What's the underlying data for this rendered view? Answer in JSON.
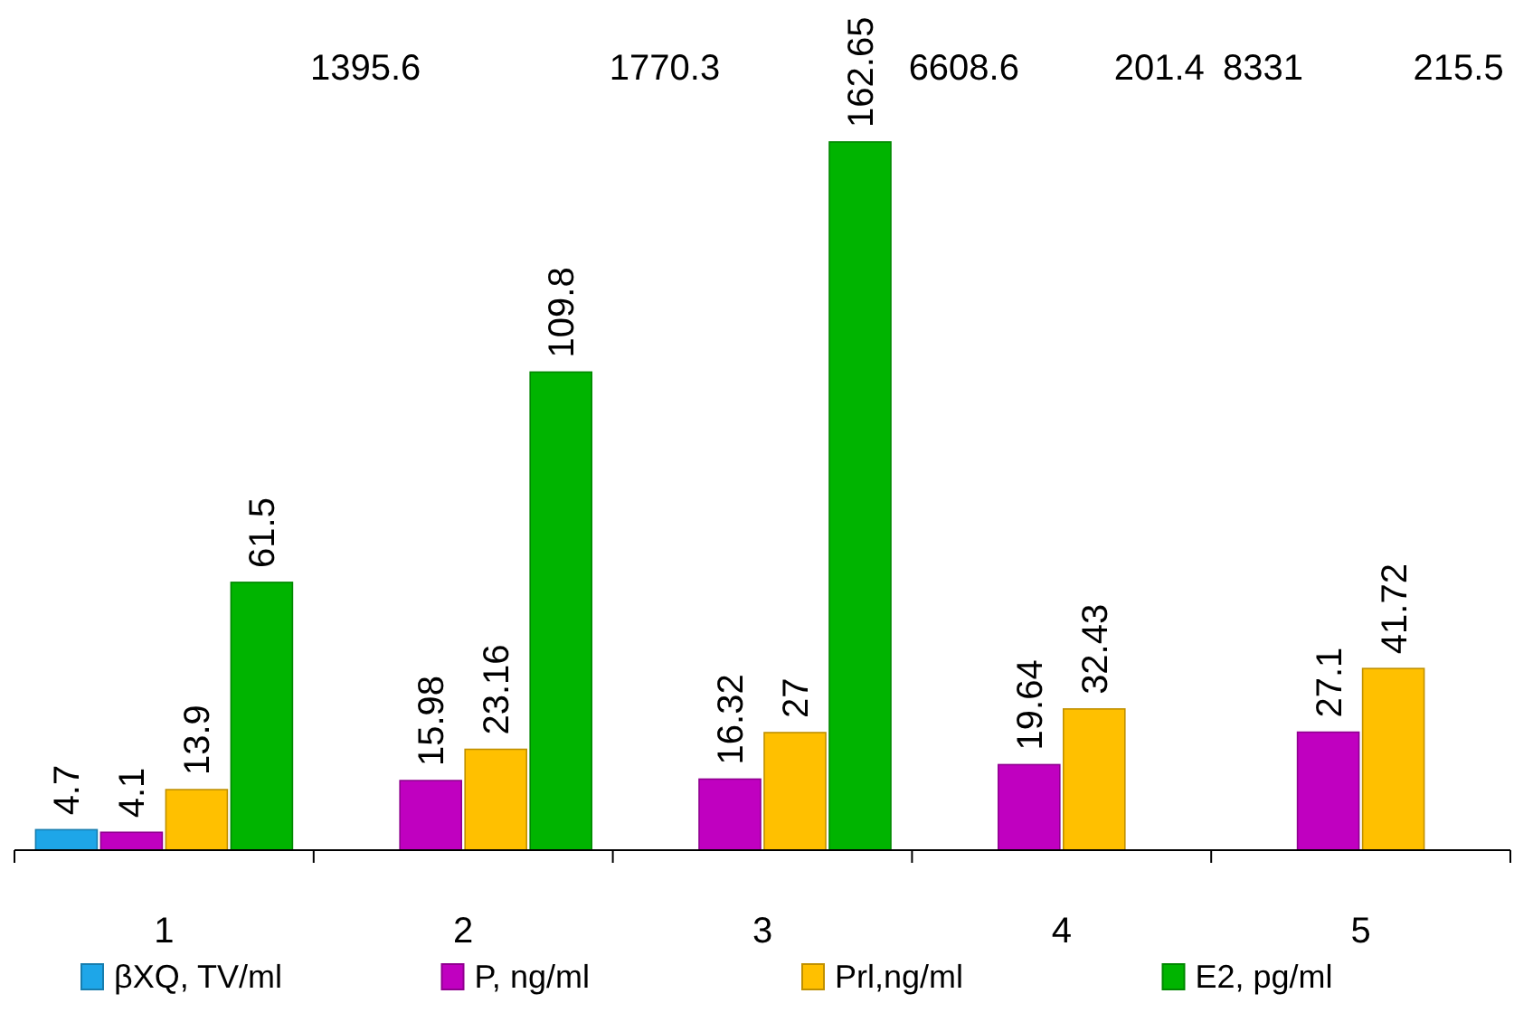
{
  "chart_data": {
    "type": "bar",
    "categories": [
      "1",
      "2",
      "3",
      "4",
      "5"
    ],
    "series": [
      {
        "name": "βXQ, TV/ml",
        "color": "#1ea6e8",
        "values": [
          4.7,
          null,
          null,
          null,
          null
        ],
        "value_labels": [
          "4.7",
          "1395.6",
          "1770.3",
          "6608.6",
          "8331"
        ]
      },
      {
        "name": "P, ng/ml",
        "color": "#c000c0",
        "values": [
          4.1,
          15.98,
          16.32,
          19.64,
          27.1
        ],
        "value_labels": [
          "4.1",
          "15.98",
          "16.32",
          "19.64",
          "27.1"
        ]
      },
      {
        "name": "Prl,ng/ml",
        "color": "#ffc000",
        "values": [
          13.9,
          23.16,
          27,
          32.43,
          41.72
        ],
        "value_labels": [
          "13.9",
          "23.16",
          "27",
          "32.43",
          "41.72"
        ]
      },
      {
        "name": "E2, pg/ml",
        "color": "#00b400",
        "values": [
          61.5,
          109.8,
          162.65,
          null,
          null
        ],
        "value_labels": [
          "61.5",
          "109.8",
          "162.65",
          "201.4",
          "215.5"
        ]
      }
    ],
    "tick_labels": "x",
    "legend": "bottom"
  }
}
